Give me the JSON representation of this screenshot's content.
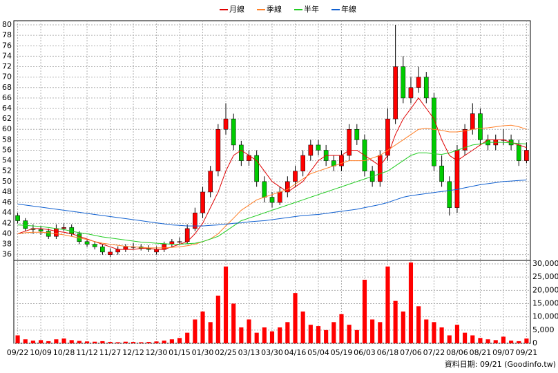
{
  "chart_data": {
    "type": "candlestick",
    "up_color": "#ff0000",
    "down_color": "#00cc00",
    "volume_color": "#ff0000",
    "grid": true,
    "categories": [
      "09/22",
      null,
      null,
      "10/09",
      null,
      null,
      "10/28",
      null,
      null,
      "11/12",
      null,
      null,
      "11/27",
      null,
      null,
      "12/12",
      null,
      null,
      "12/30",
      null,
      null,
      "01/15",
      null,
      null,
      "01/30",
      null,
      null,
      "02/25",
      null,
      null,
      "03/13",
      null,
      null,
      "03/30",
      null,
      null,
      "04/16",
      null,
      null,
      "05/04",
      null,
      null,
      "05/19",
      null,
      null,
      "06/03",
      null,
      null,
      "06/18",
      null,
      null,
      "07/06",
      null,
      null,
      "07/22",
      null,
      null,
      "08/06",
      null,
      null,
      "08/21",
      null,
      null,
      "09/07",
      null,
      null,
      "09/21"
    ],
    "open": [
      43.5,
      42.5,
      41,
      40.8,
      40.5,
      39.5,
      41,
      41.2,
      40,
      38.5,
      38,
      37.5,
      36,
      36.5,
      37,
      37.5,
      37.5,
      37.2,
      36.5,
      37,
      38,
      38.5,
      38.5,
      41,
      44,
      48,
      52,
      60,
      62,
      57,
      54,
      55,
      50,
      47,
      46,
      48,
      50,
      52,
      55,
      57,
      56,
      54,
      53,
      55,
      60,
      58,
      52,
      50,
      55,
      62,
      72,
      66,
      68,
      70,
      66,
      53,
      50,
      45,
      56,
      60,
      63,
      58,
      57,
      58,
      58,
      57,
      54
    ],
    "high": [
      44,
      43,
      41.8,
      41.5,
      41,
      41.8,
      42,
      41.8,
      40.5,
      39,
      38.6,
      38,
      37.2,
      37.6,
      38,
      38.2,
      38,
      37.8,
      37.6,
      38.5,
      39,
      39.3,
      41.8,
      45,
      49,
      53,
      61,
      65,
      63,
      57.8,
      56,
      56,
      51,
      48,
      49,
      51,
      53,
      56,
      58,
      58,
      57,
      55,
      56,
      61,
      61,
      59,
      53,
      56,
      64,
      80,
      74,
      70,
      72,
      71,
      67,
      55,
      51,
      57,
      61,
      65,
      64,
      59,
      59,
      60,
      59,
      58,
      57.5
    ],
    "low": [
      42,
      40.5,
      40,
      39.8,
      39,
      39,
      40.5,
      39.5,
      38,
      37.5,
      37,
      36,
      35.5,
      36,
      36.5,
      37,
      36.8,
      36.5,
      36,
      36.5,
      37.5,
      38,
      38,
      40.5,
      43,
      47,
      51,
      59,
      56,
      53,
      53,
      49,
      46,
      45,
      45.5,
      47,
      49,
      51,
      54,
      55,
      53,
      52,
      52,
      54,
      57,
      51,
      49,
      49,
      54,
      61,
      65,
      65,
      67,
      65,
      52,
      49,
      43.5,
      44,
      55,
      59,
      57,
      56,
      56,
      57,
      56,
      53,
      53.5
    ],
    "close": [
      42.5,
      41,
      40.8,
      40.5,
      39.5,
      41,
      41.2,
      40,
      38.5,
      38,
      37.5,
      36.5,
      36.5,
      37,
      37.5,
      37.5,
      37.2,
      37,
      37,
      38,
      38.5,
      38.5,
      41,
      44,
      48,
      52,
      60,
      62,
      57,
      54,
      55,
      50,
      47,
      46,
      48,
      50,
      52,
      55,
      57,
      56,
      54,
      53,
      55,
      60,
      58,
      52,
      50,
      55,
      62,
      72,
      66,
      68,
      70,
      66,
      53,
      50,
      45,
      56,
      60,
      63,
      58,
      57,
      58,
      58,
      57,
      54,
      56
    ],
    "volume": [
      3000,
      1500,
      1000,
      1200,
      800,
      1500,
      1800,
      1200,
      900,
      700,
      600,
      800,
      500,
      400,
      600,
      500,
      400,
      500,
      700,
      1000,
      1500,
      2000,
      4000,
      9000,
      12000,
      8000,
      18000,
      29000,
      15000,
      6000,
      9000,
      4000,
      6000,
      4500,
      6000,
      8000,
      19000,
      12000,
      7000,
      6500,
      5000,
      8000,
      11000,
      7000,
      5000,
      24000,
      9000,
      8000,
      29000,
      16000,
      12000,
      30500,
      14000,
      9000,
      8000,
      6000,
      3000,
      7000,
      4000,
      3000,
      2000,
      1500,
      1200,
      2500,
      1000,
      800,
      1800
    ],
    "lines": [
      {
        "name": "月線",
        "color": "#e00000",
        "values": [
          40,
          40.5,
          41,
          41,
          40.8,
          40.5,
          40.3,
          40,
          39.5,
          39,
          38.5,
          38,
          37.5,
          37,
          37,
          37,
          37.2,
          37.2,
          37,
          37,
          37.5,
          38,
          38.5,
          40,
          42,
          45,
          48,
          52,
          55,
          56,
          55,
          54,
          52,
          50,
          49,
          48,
          49,
          50,
          52,
          54,
          55,
          55,
          55,
          56,
          56,
          55,
          54,
          53,
          55,
          59,
          62,
          64,
          66,
          64,
          62,
          58,
          55,
          54,
          55,
          56,
          57,
          58,
          58,
          58,
          57.5,
          57,
          56.5
        ]
      },
      {
        "name": "季線",
        "color": "#ff7f27",
        "values": [
          40,
          40.2,
          40.3,
          40.3,
          40.2,
          40,
          39.8,
          39.5,
          39.2,
          38.9,
          38.5,
          38.2,
          38,
          37.8,
          37.6,
          37.5,
          37.4,
          37.3,
          37.3,
          37.3,
          37.4,
          37.5,
          37.7,
          38,
          38.5,
          39,
          40,
          41.5,
          43,
          44.5,
          45.5,
          46.5,
          47,
          47.5,
          48,
          48.5,
          49.5,
          50.5,
          51.5,
          52,
          52.5,
          53,
          53.5,
          54,
          54,
          54,
          54.5,
          55,
          56,
          57,
          58,
          59,
          60,
          60.2,
          60,
          59.8,
          59.5,
          59.5,
          59.7,
          60,
          60.2,
          60.3,
          60.5,
          60.7,
          60.8,
          60.5,
          60
        ]
      },
      {
        "name": "半年",
        "color": "#22cc22",
        "values": [
          41.7,
          41.6,
          41.5,
          41.4,
          41.2,
          41,
          40.8,
          40.5,
          40.2,
          40,
          39.7,
          39.4,
          39.2,
          39,
          38.8,
          38.6,
          38.4,
          38.3,
          38.2,
          38.1,
          38,
          38,
          38.1,
          38.2,
          38.5,
          39,
          39.5,
          40.5,
          41.5,
          42.5,
          43,
          43.5,
          44,
          44.5,
          45,
          45.5,
          46,
          46.5,
          47,
          47.5,
          48,
          48.5,
          49,
          49.5,
          50,
          50.5,
          51,
          51.5,
          52,
          53,
          54,
          55,
          55.5,
          55.5,
          55.3,
          55.2,
          55.5,
          56,
          56.5,
          57,
          57.2,
          57.5,
          57.5,
          57.5,
          57.4,
          57.3,
          57.2
        ]
      },
      {
        "name": "年線",
        "color": "#1060d0",
        "values": [
          45.7,
          45.5,
          45.3,
          45.1,
          44.9,
          44.7,
          44.5,
          44.3,
          44.1,
          43.9,
          43.7,
          43.5,
          43.3,
          43.1,
          42.9,
          42.7,
          42.5,
          42.3,
          42.1,
          41.9,
          41.7,
          41.6,
          41.5,
          41.5,
          41.5,
          41.6,
          41.7,
          41.8,
          42,
          42.1,
          42.3,
          42.4,
          42.5,
          42.7,
          42.9,
          43.1,
          43.3,
          43.5,
          43.6,
          43.7,
          43.9,
          44.1,
          44.3,
          44.5,
          44.7,
          45,
          45.3,
          45.6,
          46,
          46.5,
          47,
          47.3,
          47.5,
          47.7,
          47.9,
          48.1,
          48.3,
          48.5,
          48.8,
          49.1,
          49.4,
          49.6,
          49.8,
          50,
          50.1,
          50.2,
          50.3
        ]
      }
    ],
    "ylim": [
      34.9,
      80.8
    ],
    "yticks": [
      36,
      38,
      40,
      42,
      44,
      46,
      48,
      50,
      52,
      54,
      56,
      58,
      60,
      62,
      64,
      66,
      68,
      70,
      72,
      74,
      76,
      78,
      80
    ],
    "y2lim": [
      0,
      31300
    ],
    "y2ticks": [
      0,
      {
        "value": 5000,
        "label": "5,000"
      },
      {
        "value": 10000,
        "label": "10,000"
      },
      {
        "value": 15000,
        "label": "15,000"
      },
      {
        "value": 20000,
        "label": "20,000"
      },
      {
        "value": 25000,
        "label": "25,000"
      },
      {
        "value": 30000,
        "label": "30,000"
      }
    ],
    "footer": "資料日期: 09/21 (Goodinfo.tw)"
  }
}
